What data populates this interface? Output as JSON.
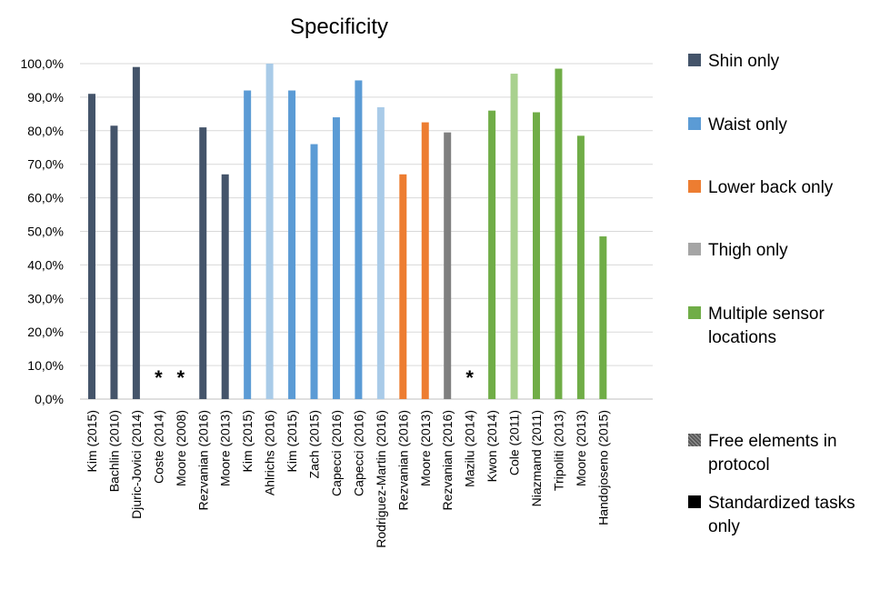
{
  "chart_data": {
    "type": "bar",
    "title": "Specificity",
    "xlabel": "",
    "ylabel": "",
    "ylim": [
      0,
      100
    ],
    "yticks": [
      "0,0%",
      "10,0%",
      "20,0%",
      "30,0%",
      "40,0%",
      "50,0%",
      "60,0%",
      "70,0%",
      "80,0%",
      "90,0%",
      "100,0%"
    ],
    "grid": true,
    "legend_position": "right",
    "categories": [
      "Kim (2015)",
      "Bachlin (2010)",
      "Djuric-Jovici (2014)",
      "Coste (2014)",
      "Moore (2008)",
      "Rezvanian (2016)",
      "Moore (2013)",
      "Kim (2015)",
      "Ahlrichs (2016)",
      "Kim (2015)",
      "Zach (2015)",
      "Capecci (2016)",
      "Capecci (2016)",
      "Rodriguez-Martin (2016)",
      "Rezvanian (2016)",
      "Moore (2013)",
      "Rezvanian (2016)",
      "Mazilu (2014)",
      "Kwon (2014)",
      "Cole (2011)",
      "Niazmand (2011)",
      "Tripoliti (2013)",
      "Moore (2013)",
      "Handojoseno (2015)"
    ],
    "values": [
      91,
      81.5,
      99,
      null,
      null,
      81,
      67,
      92,
      100,
      92,
      76,
      84,
      95,
      87,
      67,
      82.5,
      79.5,
      null,
      86,
      97,
      85.5,
      98.5,
      78.5,
      48.5
    ],
    "bar_colors": [
      "#44546a",
      "#44546a",
      "#44546a",
      "#44546a",
      "#44546a",
      "#44546a",
      "#44546a",
      "#5b9bd5",
      "#a9cbe8",
      "#5b9bd5",
      "#5b9bd5",
      "#5b9bd5",
      "#5b9bd5",
      "#a9cbe8",
      "#ed7d31",
      "#ed7d31",
      "#7f7f7f",
      "#7f7f7f",
      "#70ad47",
      "#a9d18e",
      "#70ad47",
      "#70ad47",
      "#70ad47",
      "#70ad47"
    ],
    "missing_marker": "*",
    "legend": [
      {
        "label": "Shin only",
        "color": "#44546a"
      },
      {
        "label": "Waist only",
        "color": "#5b9bd5"
      },
      {
        "label": "Lower back only",
        "color": "#ed7d31"
      },
      {
        "label": "Thigh only",
        "color": "#a5a5a5"
      },
      {
        "label": "Multiple sensor locations",
        "color": "#70ad47"
      },
      {
        "label": "Free elements in protocol",
        "color": "#7f7f7f"
      },
      {
        "label": "Standardized tasks only",
        "color": "#000000"
      }
    ]
  }
}
